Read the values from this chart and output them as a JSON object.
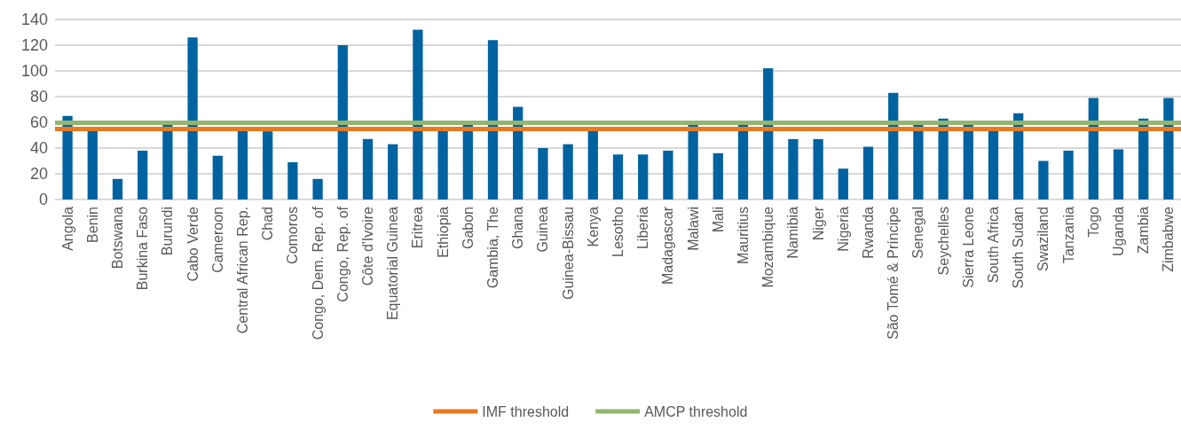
{
  "chart_data": {
    "type": "bar",
    "categories": [
      "Angola",
      "Benin",
      "Botswana",
      "Burkina Faso",
      "Burundi",
      "Cabo Verde",
      "Cameroon",
      "Central African Rep.",
      "Chad",
      "Comoros",
      "Congo, Dem. Rep. of",
      "Congo, Rep. of",
      "Côte d'Ivoire",
      "Equatorial Guinea",
      "Eritrea",
      "Ethiopia",
      "Gabon",
      "Gambia, The",
      "Ghana",
      "Guinea",
      "Guinea-Bissau",
      "Kenya",
      "Lesotho",
      "Liberia",
      "Madagascar",
      "Malawi",
      "Mali",
      "Mauritius",
      "Mozambique",
      "Namibia",
      "Niger",
      "Nigeria",
      "Rwanda",
      "São Tomé & Príncipe",
      "Senegal",
      "Seychelles",
      "Sierra Leone",
      "South Africa",
      "South Sudan",
      "Swaziland",
      "Tanzania",
      "Togo",
      "Uganda",
      "Zambia",
      "Zimbabwe"
    ],
    "values": [
      65,
      55,
      16,
      38,
      58,
      126,
      34,
      55,
      53,
      29,
      16,
      120,
      47,
      43,
      132,
      55,
      58,
      124,
      72,
      40,
      43,
      54,
      35,
      35,
      38,
      58,
      36,
      58,
      102,
      47,
      47,
      24,
      41,
      83,
      58,
      63,
      58,
      54,
      67,
      30,
      38,
      79,
      39,
      63,
      79
    ],
    "color": "#0063a0",
    "ylim": [
      0,
      140
    ],
    "yticks": [
      0,
      20,
      40,
      60,
      80,
      100,
      120,
      140
    ],
    "grid": "y",
    "legend": "bottom",
    "ref_lines": [
      {
        "axis": "y",
        "value": 55,
        "label": "IMF threshold",
        "color": "#e97a20"
      },
      {
        "axis": "y",
        "value": 60,
        "label": "AMCP threshold",
        "color": "#92b56f"
      }
    ]
  }
}
